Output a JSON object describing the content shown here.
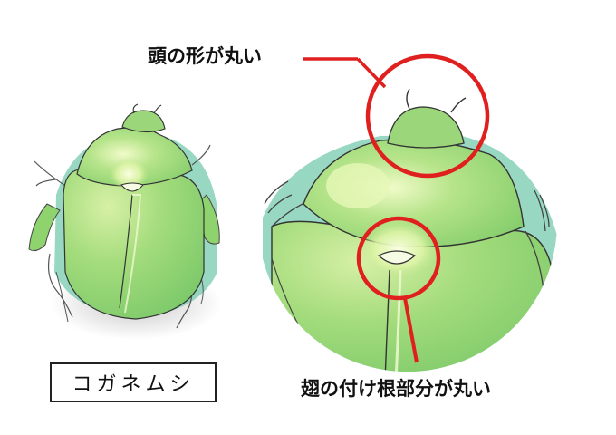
{
  "insect_name": "コガネムシ",
  "callouts": {
    "head_shape": "頭の形が丸い",
    "wing_base": "翅の付け根部分が丸い"
  },
  "colors": {
    "beetle_green": "#8fd36e",
    "beetle_highlight": "#e9f8b8",
    "beetle_shadow": "#63bf80",
    "callout_red": "#e0201e",
    "outline": "#333333"
  }
}
